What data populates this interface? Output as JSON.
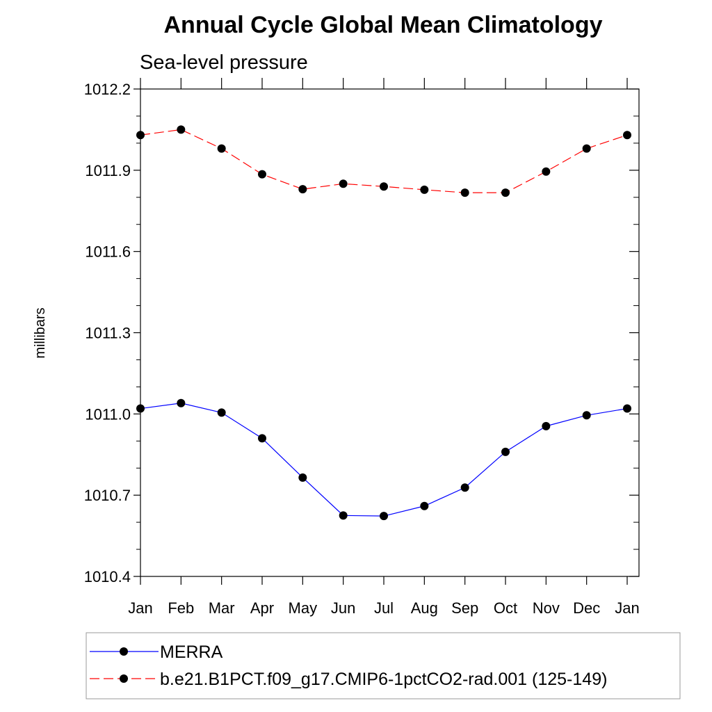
{
  "chart_data": {
    "type": "line",
    "title": "Annual Cycle Global Mean Climatology",
    "subtitle": "Sea-level pressure",
    "xlabel": "",
    "ylabel": "millibars",
    "categories": [
      "Jan",
      "Feb",
      "Mar",
      "Apr",
      "May",
      "Jun",
      "Jul",
      "Aug",
      "Sep",
      "Oct",
      "Nov",
      "Dec",
      "Jan"
    ],
    "ylim": [
      1010.4,
      1012.2
    ],
    "yticks": [
      "1010.4",
      "1010.7",
      "1011.0",
      "1011.3",
      "1011.6",
      "1011.9",
      "1012.2"
    ],
    "grid": false,
    "legend_position": "bottom",
    "series": [
      {
        "name": "MERRA",
        "color": "#0000ff",
        "style": "solid",
        "marker": "circle",
        "values": [
          1011.02,
          1011.04,
          1011.005,
          1010.91,
          1010.765,
          1010.625,
          1010.623,
          1010.66,
          1010.728,
          1010.86,
          1010.955,
          1010.995,
          1011.02
        ]
      },
      {
        "name": "b.e21.B1PCT.f09_g17.CMIP6-1pctCO2-rad.001 (125-149)",
        "color": "#ff0000",
        "style": "dashed",
        "marker": "circle",
        "values": [
          1012.03,
          1012.05,
          1011.98,
          1011.885,
          1011.83,
          1011.85,
          1011.84,
          1011.828,
          1011.817,
          1011.817,
          1011.895,
          1011.98,
          1012.03
        ]
      }
    ]
  }
}
